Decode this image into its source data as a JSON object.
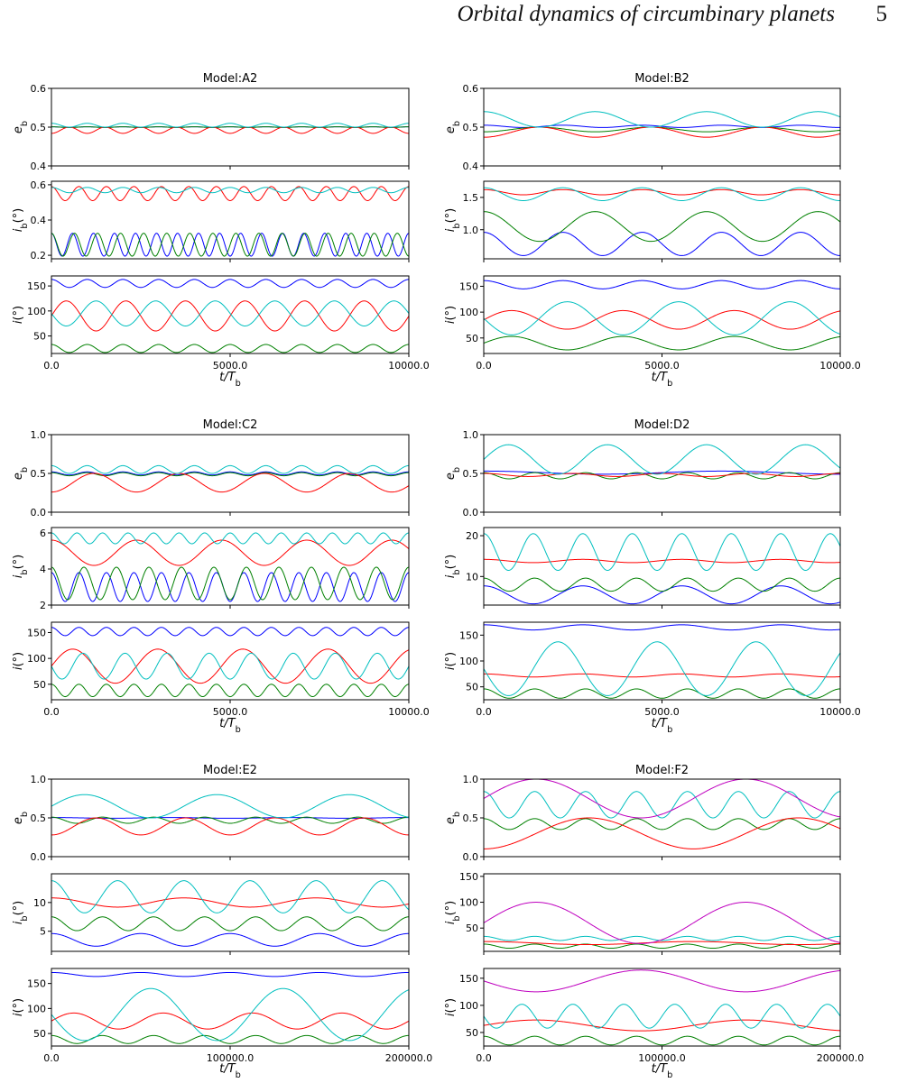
{
  "header": {
    "title": "Orbital dynamics of circumbinary planets",
    "page_number": "5"
  },
  "colors": {
    "blue": "#0000ff",
    "green": "#008000",
    "red": "#ff0000",
    "cyan": "#00bfbf",
    "magenta": "#bf00bf"
  },
  "chart_data": [
    {
      "type": "line",
      "title": "Model:A2",
      "xlabel": "t/T_b",
      "xlim": [
        0,
        10000
      ],
      "xticks": [
        "0.0",
        "5000.0",
        "10000.0"
      ],
      "panels": [
        {
          "ylabel": "e_b",
          "ylim": [
            0.4,
            0.6
          ],
          "yticks": [
            0.4,
            0.5,
            0.6
          ],
          "series": [
            {
              "color": "blue",
              "mean": 0.5,
              "amp": 0.001,
              "cycles": 10
            },
            {
              "color": "green",
              "mean": 0.5,
              "amp": 0.001,
              "cycles": 10
            },
            {
              "color": "red",
              "mean": 0.492,
              "amp": 0.008,
              "cycles": 10,
              "phase": 3.14
            },
            {
              "color": "cyan",
              "mean": 0.505,
              "amp": 0.005,
              "cycles": 10
            }
          ]
        },
        {
          "ylabel": "i_b(°)",
          "ylim": [
            0.18,
            0.62
          ],
          "yticks": [
            0.2,
            0.4,
            0.6
          ],
          "series": [
            {
              "color": "blue",
              "mean": 0.26,
              "amp": 0.065,
              "cycles": 17
            },
            {
              "color": "green",
              "mean": 0.26,
              "amp": 0.065,
              "cycles": 15.5
            },
            {
              "color": "red",
              "mean": 0.55,
              "amp": 0.04,
              "cycles": 13
            },
            {
              "color": "cyan",
              "mean": 0.57,
              "amp": 0.015,
              "cycles": 10
            }
          ]
        },
        {
          "ylabel": "i(°)",
          "ylim": [
            15,
            170
          ],
          "yticks": [
            50,
            100,
            150
          ],
          "series": [
            {
              "color": "blue",
              "mean": 155,
              "amp": 8,
              "cycles": 10
            },
            {
              "color": "green",
              "mean": 25,
              "amp": 8,
              "cycles": 10
            },
            {
              "color": "red",
              "mean": 90,
              "amp": 30,
              "cycles": 6,
              "phase": -1.57
            },
            {
              "color": "cyan",
              "mean": 95,
              "amp": 25,
              "cycles": 6,
              "phase": 1.57
            }
          ]
        }
      ]
    },
    {
      "type": "line",
      "title": "Model:B2",
      "xlabel": "t/T_b",
      "xlim": [
        0,
        10000
      ],
      "xticks": [
        "0.0",
        "5000.0",
        "10000.0"
      ],
      "panels": [
        {
          "ylabel": "e_b",
          "ylim": [
            0.4,
            0.6
          ],
          "yticks": [
            0.4,
            0.5,
            0.6
          ],
          "series": [
            {
              "color": "blue",
              "mean": 0.502,
              "amp": 0.003,
              "cycles": 4.5
            },
            {
              "color": "green",
              "mean": 0.494,
              "amp": 0.006,
              "cycles": 3.2,
              "phase": 3.14
            },
            {
              "color": "red",
              "mean": 0.487,
              "amp": 0.013,
              "cycles": 3.2,
              "phase": 3.14
            },
            {
              "color": "cyan",
              "mean": 0.52,
              "amp": 0.02,
              "cycles": 3.2
            }
          ]
        },
        {
          "ylabel": "i_b(°)",
          "ylim": [
            0.55,
            1.75
          ],
          "yticks": [
            1.0,
            1.5
          ],
          "series": [
            {
              "color": "blue",
              "mean": 0.78,
              "amp": 0.18,
              "cycles": 4.5
            },
            {
              "color": "green",
              "mean": 1.05,
              "amp": 0.23,
              "cycles": 3.2
            },
            {
              "color": "red",
              "mean": 1.58,
              "amp": 0.04,
              "cycles": 4.5
            },
            {
              "color": "cyan",
              "mean": 1.55,
              "amp": 0.1,
              "cycles": 4.5
            }
          ]
        },
        {
          "ylabel": "i(°)",
          "ylim": [
            20,
            170
          ],
          "yticks": [
            50,
            100,
            150
          ],
          "series": [
            {
              "color": "blue",
              "mean": 153,
              "amp": 8,
              "cycles": 4.5
            },
            {
              "color": "green",
              "mean": 40,
              "amp": 13,
              "cycles": 3.2,
              "phase": -1.57
            },
            {
              "color": "red",
              "mean": 85,
              "amp": 18,
              "cycles": 3.2,
              "phase": -1.57
            },
            {
              "color": "cyan",
              "mean": 88,
              "amp": 32,
              "cycles": 3.2,
              "phase": 1.57
            }
          ]
        }
      ]
    },
    {
      "type": "line",
      "title": "Model:C2",
      "xlabel": "t/T_b",
      "xlim": [
        0,
        10000
      ],
      "xticks": [
        "0.0",
        "5000.0",
        "10000.0"
      ],
      "panels": [
        {
          "ylabel": "e_b",
          "ylim": [
            0.0,
            1.0
          ],
          "yticks": [
            0.0,
            0.5,
            1.0
          ],
          "series": [
            {
              "color": "blue",
              "mean": 0.5,
              "amp": 0.02,
              "cycles": 10
            },
            {
              "color": "green",
              "mean": 0.49,
              "amp": 0.02,
              "cycles": 10
            },
            {
              "color": "red",
              "mean": 0.38,
              "amp": 0.12,
              "cycles": 4.2,
              "phase": 3.14
            },
            {
              "color": "cyan",
              "mean": 0.55,
              "amp": 0.05,
              "cycles": 10
            }
          ]
        },
        {
          "ylabel": "i_b(°)",
          "ylim": [
            2,
            6.3
          ],
          "yticks": [
            2,
            4,
            6
          ],
          "series": [
            {
              "color": "blue",
              "mean": 3.0,
              "amp": 0.8,
              "cycles": 13
            },
            {
              "color": "green",
              "mean": 3.2,
              "amp": 0.9,
              "cycles": 11
            },
            {
              "color": "red",
              "mean": 4.9,
              "amp": 0.7,
              "cycles": 4.2
            },
            {
              "color": "cyan",
              "mean": 5.7,
              "amp": 0.3,
              "cycles": 14
            }
          ]
        },
        {
          "ylabel": "i(°)",
          "ylim": [
            20,
            170
          ],
          "yticks": [
            50,
            100,
            150
          ],
          "series": [
            {
              "color": "blue",
              "mean": 152,
              "amp": 8,
              "cycles": 13
            },
            {
              "color": "green",
              "mean": 38,
              "amp": 12,
              "cycles": 13
            },
            {
              "color": "red",
              "mean": 85,
              "amp": 33,
              "cycles": 4.2,
              "phase": -1.57
            },
            {
              "color": "cyan",
              "mean": 85,
              "amp": 25,
              "cycles": 8.5,
              "phase": 1.57
            }
          ]
        }
      ]
    },
    {
      "type": "line",
      "title": "Model:D2",
      "xlabel": "t/T_b",
      "xlim": [
        0,
        10000
      ],
      "xticks": [
        "0.0",
        "5000.0",
        "10000.0"
      ],
      "panels": [
        {
          "ylabel": "e_b",
          "ylim": [
            0.0,
            1.0
          ],
          "yticks": [
            0.0,
            0.5,
            1.0
          ],
          "series": [
            {
              "color": "blue",
              "mean": 0.51,
              "amp": 0.02,
              "cycles": 1.5
            },
            {
              "color": "green",
              "mean": 0.47,
              "amp": 0.04,
              "cycles": 7
            },
            {
              "color": "red",
              "mean": 0.48,
              "amp": 0.02,
              "cycles": 4
            },
            {
              "color": "cyan",
              "mean": 0.68,
              "amp": 0.19,
              "cycles": 3.6,
              "phase": -1.57
            }
          ]
        },
        {
          "ylabel": "i_b(°)",
          "ylim": [
            3,
            22
          ],
          "yticks": [
            10,
            20
          ],
          "series": [
            {
              "color": "blue",
              "mean": 5.5,
              "amp": 2.2,
              "cycles": 3.6
            },
            {
              "color": "green",
              "mean": 8,
              "amp": 1.6,
              "cycles": 7
            },
            {
              "color": "red",
              "mean": 13.8,
              "amp": 0.4,
              "cycles": 3.6
            },
            {
              "color": "cyan",
              "mean": 16,
              "amp": 4.5,
              "cycles": 7.2
            }
          ]
        },
        {
          "ylabel": "i(°)",
          "ylim": [
            25,
            175
          ],
          "yticks": [
            50,
            100,
            150
          ],
          "series": [
            {
              "color": "blue",
              "mean": 165,
              "amp": 5,
              "cycles": 3.6
            },
            {
              "color": "green",
              "mean": 37,
              "amp": 9,
              "cycles": 7
            },
            {
              "color": "red",
              "mean": 72,
              "amp": 3,
              "cycles": 3.6
            },
            {
              "color": "cyan",
              "mean": 85,
              "amp": 52,
              "cycles": 3.6,
              "phase": 1.57
            }
          ]
        }
      ]
    },
    {
      "type": "line",
      "title": "Model:E2",
      "xlabel": "t/T_b",
      "xlim": [
        0,
        200000
      ],
      "xticks": [
        "0.0",
        "100000.0",
        "200000.0"
      ],
      "panels": [
        {
          "ylabel": "e_b",
          "ylim": [
            0.0,
            1.0
          ],
          "yticks": [
            0.0,
            0.5,
            1.0
          ],
          "series": [
            {
              "color": "blue",
              "mean": 0.5,
              "amp": 0.005,
              "cycles": 3
            },
            {
              "color": "green",
              "mean": 0.47,
              "amp": 0.04,
              "cycles": 7
            },
            {
              "color": "red",
              "mean": 0.39,
              "amp": 0.11,
              "cycles": 4,
              "phase": 3.14
            },
            {
              "color": "cyan",
              "mean": 0.65,
              "amp": 0.15,
              "cycles": 2.7,
              "phase": -1.57
            }
          ]
        },
        {
          "ylabel": "i_b(°)",
          "ylim": [
            1.5,
            15
          ],
          "yticks": [
            5,
            10
          ],
          "series": [
            {
              "color": "blue",
              "mean": 3.5,
              "amp": 1.1,
              "cycles": 4
            },
            {
              "color": "green",
              "mean": 6.3,
              "amp": 1.2,
              "cycles": 7
            },
            {
              "color": "red",
              "mean": 10,
              "amp": 0.8,
              "cycles": 2.7
            },
            {
              "color": "cyan",
              "mean": 11,
              "amp": 2.8,
              "cycles": 5.4
            }
          ]
        },
        {
          "ylabel": "i(°)",
          "ylim": [
            25,
            180
          ],
          "yticks": [
            50,
            100,
            150
          ],
          "series": [
            {
              "color": "blue",
              "mean": 168,
              "amp": 4,
              "cycles": 4
            },
            {
              "color": "green",
              "mean": 38,
              "amp": 8,
              "cycles": 7
            },
            {
              "color": "red",
              "mean": 75,
              "amp": 16,
              "cycles": 4,
              "phase": -1.57
            },
            {
              "color": "cyan",
              "mean": 88,
              "amp": 52,
              "cycles": 2.7,
              "phase": 1.57
            }
          ]
        }
      ]
    },
    {
      "type": "line",
      "title": "Model:F2",
      "xlabel": "t/T_b",
      "xlim": [
        0,
        200000
      ],
      "xticks": [
        "0.0",
        "100000.0",
        "200000.0"
      ],
      "panels": [
        {
          "ylabel": "e_b",
          "ylim": [
            0.0,
            1.0
          ],
          "yticks": [
            0.0,
            0.5,
            1.0
          ],
          "series": [
            {
              "color": "green",
              "mean": 0.42,
              "amp": 0.07,
              "cycles": 7
            },
            {
              "color": "red",
              "mean": 0.3,
              "amp": 0.2,
              "cycles": 1.7,
              "phase": 3.14
            },
            {
              "color": "cyan",
              "mean": 0.67,
              "amp": 0.17,
              "cycles": 7
            },
            {
              "color": "magenta",
              "mean": 0.75,
              "amp": 0.25,
              "cycles": 1.7,
              "phase": -1.57
            }
          ]
        },
        {
          "ylabel": "i_b(°)",
          "ylim": [
            5,
            155
          ],
          "yticks": [
            50,
            100,
            150
          ],
          "series": [
            {
              "color": "green",
              "mean": 15,
              "amp": 4,
              "cycles": 7
            },
            {
              "color": "red",
              "mean": 21,
              "amp": 3,
              "cycles": 1.7
            },
            {
              "color": "cyan",
              "mean": 30,
              "amp": 4,
              "cycles": 7
            },
            {
              "color": "magenta",
              "mean": 60,
              "amp": 40,
              "cycles": 1.7,
              "phase": -1.57
            }
          ]
        },
        {
          "ylabel": "i(°)",
          "ylim": [
            25,
            168
          ],
          "yticks": [
            50,
            100,
            150
          ],
          "series": [
            {
              "color": "green",
              "mean": 35,
              "amp": 8,
              "cycles": 7
            },
            {
              "color": "red",
              "mean": 63,
              "amp": 10,
              "cycles": 1.7,
              "phase": -1.57
            },
            {
              "color": "cyan",
              "mean": 80,
              "amp": 22,
              "cycles": 7,
              "phase": 1.57
            },
            {
              "color": "magenta",
              "mean": 145,
              "amp": 20,
              "cycles": 1.7,
              "phase": 1.57
            }
          ]
        }
      ]
    }
  ]
}
